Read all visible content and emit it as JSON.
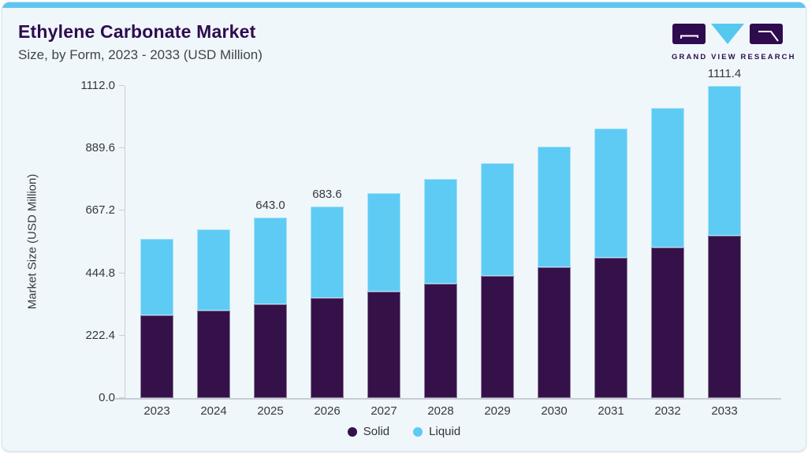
{
  "header": {
    "title": "Ethylene Carbonate Market",
    "subtitle": "Size, by Form, 2023 - 2033 (USD Million)"
  },
  "logo": {
    "text": "GRAND VIEW RESEARCH"
  },
  "colors": {
    "accent_strip": "#5FC5EE",
    "card_background": "#F0F7FB",
    "title": "#2E0C4F",
    "solid": "#351149",
    "liquid": "#5DCBF4",
    "axis_line": "#C9CED6",
    "axis_text": "#34393E"
  },
  "chart_data": {
    "type": "bar",
    "subtype": "stacked",
    "title": "Ethylene Carbonate Market Size, by Form, 2023 - 2033 (USD Million)",
    "xlabel": "",
    "ylabel": "Market Size (USD Million)",
    "ylim": [
      0,
      1112.0
    ],
    "ytick_labels": [
      "0.0",
      "222.4",
      "444.8",
      "667.2",
      "889.6",
      "1112.0"
    ],
    "grid": false,
    "legend_position": "bottom",
    "categories": [
      "2023",
      "2024",
      "2025",
      "2026",
      "2027",
      "2028",
      "2029",
      "2030",
      "2031",
      "2032",
      "2033"
    ],
    "series": [
      {
        "name": "Solid",
        "color": "#351149",
        "values": [
          294.6,
          313.1,
          334.4,
          355.5,
          379.8,
          406.2,
          434.8,
          466.1,
          500.1,
          537.2,
          577.9
        ]
      },
      {
        "name": "Liquid",
        "color": "#5DCBF4",
        "values": [
          272.0,
          289.1,
          308.6,
          328.1,
          350.6,
          374.9,
          401.4,
          430.2,
          461.6,
          495.9,
          533.5
        ]
      }
    ],
    "totals": [
      566.6,
      602.2,
      643.0,
      683.6,
      730.4,
      781.1,
      836.2,
      896.3,
      961.7,
      1033.1,
      1111.4
    ],
    "bar_value_labels": [
      null,
      null,
      "643.0",
      "683.6",
      null,
      null,
      null,
      null,
      null,
      null,
      "1111.4"
    ]
  }
}
